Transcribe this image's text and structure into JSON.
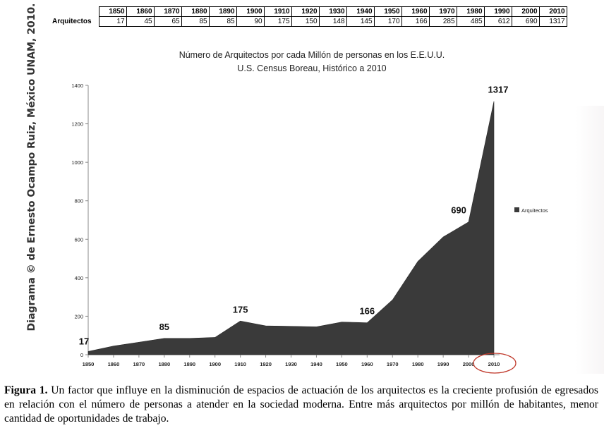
{
  "credit": "Diagrama © de Ernesto Ocampo Ruiz, México UNAM, 2010.",
  "table": {
    "row_label": "Arquitectos",
    "years": [
      "1850",
      "1860",
      "1870",
      "1880",
      "1890",
      "1900",
      "1910",
      "1920",
      "1930",
      "1940",
      "1950",
      "1960",
      "1970",
      "1980",
      "1990",
      "2000",
      "2010"
    ],
    "values": [
      "17",
      "45",
      "65",
      "85",
      "85",
      "90",
      "175",
      "150",
      "148",
      "145",
      "170",
      "166",
      "285",
      "485",
      "612",
      "690",
      "1317"
    ]
  },
  "chart_data": {
    "type": "area",
    "title": "Número de Arquitectos por cada Millón de personas en los E.E.U.U.",
    "subtitle": "U.S. Census Boreau, Histórico a 2010",
    "x": [
      1850,
      1860,
      1870,
      1880,
      1890,
      1900,
      1910,
      1920,
      1930,
      1940,
      1950,
      1960,
      1970,
      1980,
      1990,
      2000,
      2010
    ],
    "series": [
      {
        "name": "Arquitectos",
        "values": [
          17,
          45,
          65,
          85,
          85,
          90,
          175,
          150,
          148,
          145,
          170,
          166,
          285,
          485,
          612,
          690,
          1317
        ]
      }
    ],
    "x_ticks": [
      "1850",
      "1860",
      "1870",
      "1880",
      "1890",
      "1900",
      "1910",
      "1920",
      "1930",
      "1940",
      "1950",
      "1960",
      "1970",
      "1980",
      "1990",
      "2000",
      "2010"
    ],
    "y_ticks": [
      "0",
      "200",
      "400",
      "600",
      "800",
      "1000",
      "1200",
      "1400"
    ],
    "ylim": [
      0,
      1400
    ],
    "xlim": [
      1850,
      2010
    ],
    "legend": "Arquitectos",
    "legend_position": "right",
    "grid": false,
    "data_labels": [
      {
        "x": 1850,
        "value": 17,
        "text": "17"
      },
      {
        "x": 1880,
        "value": 85,
        "text": "85"
      },
      {
        "x": 1910,
        "value": 175,
        "text": "175"
      },
      {
        "x": 1960,
        "value": 166,
        "text": "166"
      },
      {
        "x": 2000,
        "value": 690,
        "text": "690"
      },
      {
        "x": 2010,
        "value": 1317,
        "text": "1317"
      }
    ],
    "highlighted_tick": "2010",
    "colors": {
      "area": "#3a3a3a",
      "highlight": "#c0392b"
    }
  },
  "caption": {
    "label": "Figura 1.",
    "text": "Un factor que influye en la disminución de espacios de actuación de los arquitectos es la creciente profusión de egresados en relación con el número de personas a atender en la sociedad moderna. Entre más arquitectos por millón de habitantes, menor cantidad de oportunidades de trabajo."
  }
}
